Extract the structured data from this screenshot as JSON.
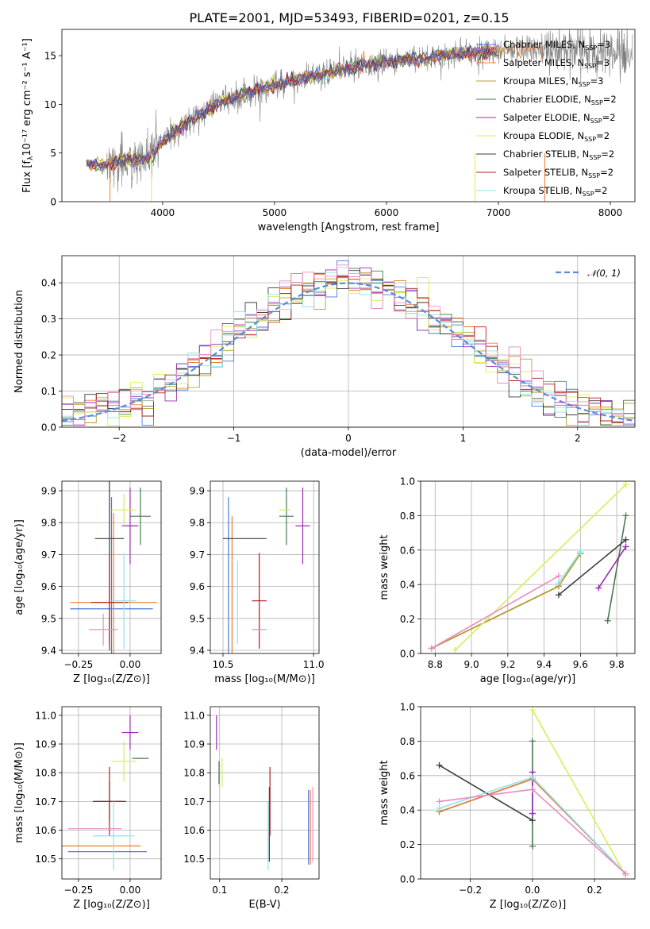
{
  "figure": {
    "title": "PLATE=2001, MJD=53493, FIBERID=0201, z=0.15"
  },
  "colors": {
    "data": "#7f7f7f",
    "gauss": "#5b8bd6",
    "models": [
      "#4e79d6",
      "#ed7d31",
      "#b8a030",
      "#4a7a52",
      "#9c2cb6",
      "#d8ee5a",
      "#3d3d3d",
      "#b21e1e",
      "#8fe3ea",
      "#e98bc4"
    ]
  },
  "legend_spectrum": [
    {
      "label": "Chabrier MILES, N",
      "sub": "SSP",
      "suffix": "=3"
    },
    {
      "label": "Salpeter MILES, N",
      "sub": "SSP",
      "suffix": "=3"
    },
    {
      "label": "Kroupa MILES, N",
      "sub": "SSP",
      "suffix": "=3"
    },
    {
      "label": "Chabrier ELODIE, N",
      "sub": "SSP",
      "suffix": "=2"
    },
    {
      "label": "Salpeter ELODIE, N",
      "sub": "SSP",
      "suffix": "=2"
    },
    {
      "label": "Kroupa ELODIE, N",
      "sub": "SSP",
      "suffix": "=2"
    },
    {
      "label": "Chabrier STELIB, N",
      "sub": "SSP",
      "suffix": "=2"
    },
    {
      "label": "Salpeter STELIB, N",
      "sub": "SSP",
      "suffix": "=2"
    },
    {
      "label": "Kroupa STELIB, N",
      "sub": "SSP",
      "suffix": "=2"
    }
  ],
  "chart_data": [
    {
      "id": "spectrum",
      "type": "line",
      "xlabel": "wavelength [Angstrom, rest frame]",
      "ylabel": "Flux [f",
      "ylabel_sub": "λ",
      "ylabel_tail": "10⁻¹⁷ erg cm⁻² s⁻¹ A⁻¹]",
      "xlim": [
        3100,
        8220
      ],
      "ylim": [
        0,
        17.7
      ],
      "xticks": [
        4000,
        5000,
        6000,
        7000,
        8000
      ],
      "yticks": [
        0,
        5,
        10,
        15
      ],
      "x": [
        3320,
        3400,
        3500,
        3600,
        3700,
        3800,
        3900,
        4000,
        4100,
        4200,
        4300,
        4400,
        4500,
        4600,
        4700,
        4800,
        4900,
        5000,
        5100,
        5200,
        5300,
        5400,
        5500,
        5600,
        5700,
        5800,
        5900,
        6000,
        6100,
        6200,
        6300,
        6400,
        6500,
        6600,
        6700,
        6800,
        6900,
        7000,
        7100,
        7200,
        7300,
        7400,
        7500,
        7600,
        7700,
        7800,
        7900,
        8000
      ],
      "y": [
        3.9,
        3.8,
        3.7,
        4.1,
        4.3,
        4.2,
        4.6,
        6.2,
        7.1,
        8.0,
        8.7,
        9.4,
        10.2,
        10.6,
        11.0,
        11.3,
        11.7,
        12.0,
        12.4,
        12.5,
        12.8,
        13.0,
        13.3,
        13.5,
        13.8,
        14.0,
        14.1,
        14.3,
        14.5,
        14.6,
        14.7,
        14.8,
        15.0,
        15.1,
        15.2,
        15.3,
        15.4,
        15.5,
        15.6,
        15.7,
        15.8,
        15.6,
        15.8,
        15.7,
        15.5,
        15.6,
        15.4,
        15.3
      ],
      "grid": false,
      "legend": "top-right"
    },
    {
      "id": "residuals",
      "type": "histogram",
      "xlabel": "(data-model)/error",
      "ylabel": "Normed distribution",
      "xlim": [
        -2.5,
        2.5
      ],
      "ylim": [
        0,
        0.475
      ],
      "xticks": [
        -2,
        -1,
        0,
        1,
        2
      ],
      "yticks": [
        0.0,
        0.1,
        0.2,
        0.3,
        0.4
      ],
      "bin_width": 0.1,
      "legend": {
        "label": "𝒩(0, 1)",
        "placement": "top-right"
      },
      "grid": true
    },
    {
      "id": "age_vs_Z",
      "type": "errorbar",
      "xlabel": "Z [log₁₀(Z/Z⊙)]",
      "ylabel": "age  [log₁₀(age/yr)]",
      "xlim": [
        -0.33,
        0.15
      ],
      "ylim": [
        9.39,
        9.93
      ],
      "xticks": [
        -0.25,
        0.0
      ],
      "xticklabels": [
        "−0.25",
        "0.00"
      ],
      "yticks": [
        9.4,
        9.5,
        9.6,
        9.7,
        9.8,
        9.9
      ],
      "points": [
        {
          "c": 0,
          "x": -0.09,
          "y": 9.53,
          "xerr": 0.2,
          "yerr": 0.35
        },
        {
          "c": 1,
          "x": -0.08,
          "y": 9.55,
          "xerr": 0.21,
          "yerr": 0.28
        },
        {
          "c": 3,
          "x": 0.05,
          "y": 9.82,
          "xerr": 0.05,
          "yerr": 0.09
        },
        {
          "c": 4,
          "x": 0.0,
          "y": 9.79,
          "xerr": 0.04,
          "yerr": 0.12
        },
        {
          "c": 5,
          "x": -0.03,
          "y": 9.84,
          "xerr": 0.06,
          "yerr": 0.05
        },
        {
          "c": 6,
          "x": -0.1,
          "y": 9.75,
          "xerr": 0.07,
          "yerr": 0.33
        },
        {
          "c": 7,
          "x": -0.1,
          "y": 9.55,
          "xerr": 0.09,
          "yerr": 0.15
        },
        {
          "c": 8,
          "x": -0.03,
          "y": 9.555,
          "xerr": 0.06,
          "yerr": 0.15
        },
        {
          "c": 9,
          "x": -0.13,
          "y": 9.465,
          "xerr": 0.07,
          "yerr": 0.05
        }
      ],
      "grid": true
    },
    {
      "id": "age_vs_mass",
      "type": "errorbar",
      "xlabel": "mass [log₁₀(M/M⊙)]",
      "ylabel": "",
      "xlim": [
        10.43,
        11.03
      ],
      "ylim": [
        9.39,
        9.93
      ],
      "xticks": [
        10.5,
        11.0
      ],
      "yticks": [
        9.4,
        9.5,
        9.6,
        9.7,
        9.8,
        9.9
      ],
      "points": [
        {
          "c": 0,
          "x": 10.53,
          "y": 9.55,
          "xerr": 0.0,
          "yerr": 0.33
        },
        {
          "c": 1,
          "x": 10.55,
          "y": 9.55,
          "xerr": 0.0,
          "yerr": 0.27
        },
        {
          "c": 3,
          "x": 10.85,
          "y": 9.82,
          "xerr": 0.04,
          "yerr": 0.09
        },
        {
          "c": 4,
          "x": 10.94,
          "y": 9.79,
          "xerr": 0.04,
          "yerr": 0.12
        },
        {
          "c": 5,
          "x": 10.84,
          "y": 9.84,
          "xerr": 0.03,
          "yerr": 0.0
        },
        {
          "c": 6,
          "x": 10.62,
          "y": 9.75,
          "xerr": 0.12,
          "yerr": 0.0
        },
        {
          "c": 7,
          "x": 10.7,
          "y": 9.555,
          "xerr": 0.04,
          "yerr": 0.15
        },
        {
          "c": 8,
          "x": 10.58,
          "y": 9.55,
          "xerr": 0.0,
          "yerr": 0.13
        },
        {
          "c": 9,
          "x": 10.7,
          "y": 9.465,
          "xerr": 0.04,
          "yerr": 0.0
        }
      ],
      "grid": true
    },
    {
      "id": "weight_vs_age",
      "type": "line",
      "xlabel": "age  [log₁₀(age/yr)]",
      "ylabel": "mass weight",
      "xlim": [
        8.72,
        9.9
      ],
      "ylim": [
        0,
        1.0
      ],
      "xticks": [
        8.8,
        9.0,
        9.2,
        9.4,
        9.6,
        9.8
      ],
      "yticks": [
        0.0,
        0.2,
        0.4,
        0.6,
        0.8,
        1.0
      ],
      "series": [
        {
          "c": 0,
          "x": [
            8.78,
            9.48,
            9.6
          ],
          "y": [
            0.03,
            0.39,
            0.58
          ]
        },
        {
          "c": 1,
          "x": [
            8.78,
            9.48,
            9.6
          ],
          "y": [
            0.03,
            0.39,
            0.58
          ]
        },
        {
          "c": 2,
          "x": [
            8.78,
            9.48,
            9.6
          ],
          "y": [
            0.03,
            0.39,
            0.58
          ]
        },
        {
          "c": 3,
          "x": [
            9.75,
            9.85
          ],
          "y": [
            0.19,
            0.8
          ]
        },
        {
          "c": 4,
          "x": [
            9.7,
            9.85
          ],
          "y": [
            0.38,
            0.62
          ]
        },
        {
          "c": 5,
          "x": [
            8.91,
            9.85
          ],
          "y": [
            0.02,
            0.98
          ]
        },
        {
          "c": 6,
          "x": [
            9.48,
            9.85
          ],
          "y": [
            0.34,
            0.66
          ]
        },
        {
          "c": 8,
          "x": [
            9.48,
            9.6
          ],
          "y": [
            0.41,
            0.59
          ]
        },
        {
          "c": 9,
          "x": [
            8.78,
            9.48
          ],
          "y": [
            0.03,
            0.45
          ]
        }
      ],
      "grid": true
    },
    {
      "id": "mass_vs_Z",
      "type": "errorbar",
      "xlabel": "Z [log₁₀(Z/Z⊙)]",
      "ylabel": "mass [log₁₀(M/M⊙)]",
      "xlim": [
        -0.33,
        0.15
      ],
      "ylim": [
        10.43,
        11.03
      ],
      "xticks": [
        -0.25,
        0.0
      ],
      "xticklabels": [
        "−0.25",
        "0.00"
      ],
      "yticks": [
        10.5,
        10.6,
        10.7,
        10.8,
        10.9,
        11.0
      ],
      "points": [
        {
          "c": 0,
          "x": -0.11,
          "y": 10.525,
          "xerr": 0.19,
          "yerr": 0.0
        },
        {
          "c": 1,
          "x": -0.14,
          "y": 10.545,
          "xerr": 0.19,
          "yerr": 0.0
        },
        {
          "c": 3,
          "x": 0.05,
          "y": 10.85,
          "xerr": 0.04,
          "yerr": 0.0
        },
        {
          "c": 4,
          "x": 0.0,
          "y": 10.94,
          "xerr": 0.04,
          "yerr": 0.06
        },
        {
          "c": 5,
          "x": -0.03,
          "y": 10.84,
          "xerr": 0.06,
          "yerr": 0.07
        },
        {
          "c": 6,
          "x": -0.1,
          "y": 10.7,
          "xerr": 0.08,
          "yerr": 0.07
        },
        {
          "c": 7,
          "x": -0.1,
          "y": 10.7,
          "xerr": 0.07,
          "yerr": 0.12
        },
        {
          "c": 8,
          "x": -0.08,
          "y": 10.58,
          "xerr": 0.1,
          "yerr": 0.12
        },
        {
          "c": 9,
          "x": -0.17,
          "y": 10.605,
          "xerr": 0.13,
          "yerr": 0.0
        }
      ],
      "grid": true
    },
    {
      "id": "mass_vs_EBV",
      "type": "errorbar",
      "xlabel": "E(B-V)",
      "ylabel": "",
      "xlim": [
        0.085,
        0.26
      ],
      "ylim": [
        10.43,
        11.03
      ],
      "xticks": [
        0.1,
        0.2
      ],
      "yticks": [
        10.5,
        10.6,
        10.7,
        10.8,
        10.9,
        11.0
      ],
      "points": [
        {
          "c": 0,
          "x": 0.243,
          "y": 10.61,
          "xerr": 0.0,
          "yerr": 0.13
        },
        {
          "c": 1,
          "x": 0.246,
          "y": 10.61,
          "xerr": 0.0,
          "yerr": 0.13
        },
        {
          "c": 3,
          "x": 0.099,
          "y": 10.8,
          "xerr": 0.0,
          "yerr": 0.04
        },
        {
          "c": 4,
          "x": 0.095,
          "y": 10.94,
          "xerr": 0.0,
          "yerr": 0.06
        },
        {
          "c": 5,
          "x": 0.104,
          "y": 10.8,
          "xerr": 0.0,
          "yerr": 0.05
        },
        {
          "c": 6,
          "x": 0.18,
          "y": 10.62,
          "xerr": 0.0,
          "yerr": 0.13
        },
        {
          "c": 7,
          "x": 0.181,
          "y": 10.7,
          "xerr": 0.0,
          "yerr": 0.12
        },
        {
          "c": 8,
          "x": 0.178,
          "y": 10.58,
          "xerr": 0.0,
          "yerr": 0.12
        },
        {
          "c": 9,
          "x": 0.25,
          "y": 10.62,
          "xerr": 0.0,
          "yerr": 0.13
        }
      ],
      "grid": true
    },
    {
      "id": "weight_vs_Z",
      "type": "line",
      "xlabel": "Z [log₁₀(Z/Z⊙)]",
      "ylabel": "mass weight",
      "xlim": [
        -0.36,
        0.33
      ],
      "ylim": [
        0,
        1.0
      ],
      "xticks": [
        -0.2,
        0.0,
        0.2
      ],
      "xticklabels": [
        "−0.2",
        "0.0",
        "0.2"
      ],
      "yticks": [
        0.0,
        0.2,
        0.4,
        0.6,
        0.8,
        1.0
      ],
      "series": [
        {
          "c": 0,
          "x": [
            -0.3,
            0.0,
            0.3
          ],
          "y": [
            0.39,
            0.58,
            0.03
          ]
        },
        {
          "c": 1,
          "x": [
            -0.3,
            0.0,
            0.3
          ],
          "y": [
            0.39,
            0.58,
            0.03
          ]
        },
        {
          "c": 3,
          "x": [
            0.0,
            0.0
          ],
          "y": [
            0.19,
            0.8
          ]
        },
        {
          "c": 4,
          "x": [
            0.0,
            0.0
          ],
          "y": [
            0.38,
            0.62
          ]
        },
        {
          "c": 5,
          "x": [
            0.0,
            0.3
          ],
          "y": [
            0.98,
            0.02
          ]
        },
        {
          "c": 6,
          "x": [
            -0.3,
            0.0
          ],
          "y": [
            0.66,
            0.34
          ]
        },
        {
          "c": 8,
          "x": [
            -0.3,
            0.0,
            0.3
          ],
          "y": [
            0.41,
            0.59,
            0.03
          ]
        },
        {
          "c": 9,
          "x": [
            -0.3,
            0.0,
            0.3
          ],
          "y": [
            0.45,
            0.52,
            0.03
          ]
        }
      ],
      "grid": true
    }
  ]
}
